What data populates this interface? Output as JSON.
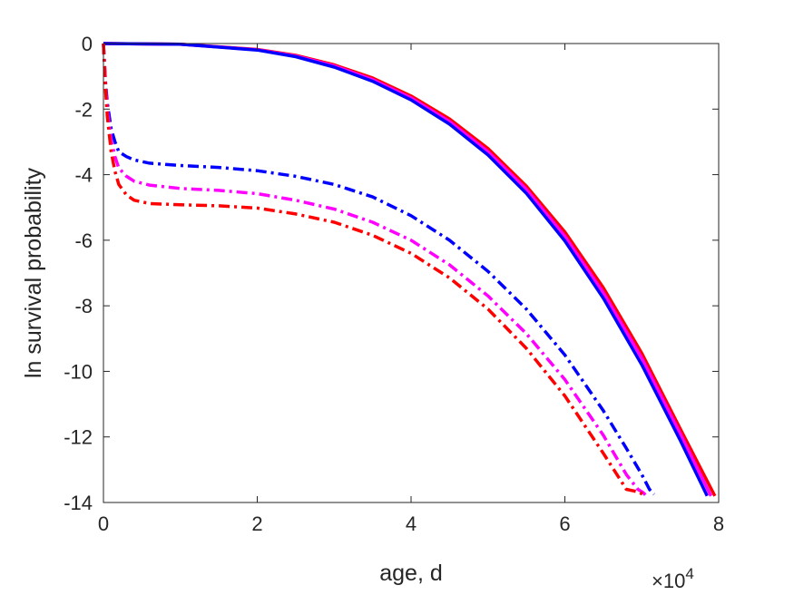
{
  "chart_data": {
    "type": "line",
    "xlabel": "age, d",
    "ylabel": "ln survival probability",
    "x_exponent_label": {
      "base": "×10",
      "power": "4"
    },
    "xlim": [
      0,
      80000
    ],
    "ylim": [
      -14,
      0
    ],
    "x_ticks": [
      0,
      20000,
      40000,
      60000,
      80000
    ],
    "x_tick_labels": [
      "0",
      "2",
      "4",
      "6",
      "8"
    ],
    "y_ticks": [
      0,
      -2,
      -4,
      -6,
      -8,
      -10,
      -12,
      -14
    ],
    "y_tick_labels": [
      "0",
      "-2",
      "-4",
      "-6",
      "-8",
      "-10",
      "-12",
      "-14"
    ],
    "grid": false,
    "box": true,
    "series": [
      {
        "color": "#ff0000",
        "style": "solid",
        "x": [
          0,
          10000,
          20000,
          25000,
          30000,
          35000,
          40000,
          45000,
          50000,
          55000,
          60000,
          65000,
          70000,
          75000,
          79500
        ],
        "y": [
          0,
          -0.02,
          -0.18,
          -0.36,
          -0.65,
          -1.05,
          -1.6,
          -2.3,
          -3.2,
          -4.35,
          -5.75,
          -7.45,
          -9.45,
          -11.75,
          -13.8
        ]
      },
      {
        "color": "#ff00ff",
        "style": "solid",
        "x": [
          0,
          10000,
          20000,
          25000,
          30000,
          35000,
          40000,
          45000,
          50000,
          55000,
          60000,
          65000,
          70000,
          75000,
          79000
        ],
        "y": [
          0,
          -0.02,
          -0.19,
          -0.38,
          -0.68,
          -1.1,
          -1.66,
          -2.38,
          -3.3,
          -4.45,
          -5.88,
          -7.6,
          -9.6,
          -11.9,
          -13.8
        ]
      },
      {
        "color": "#0000ff",
        "style": "solid",
        "x": [
          0,
          10000,
          20000,
          25000,
          30000,
          35000,
          40000,
          45000,
          50000,
          55000,
          60000,
          65000,
          70000,
          75000,
          78500
        ],
        "y": [
          0,
          -0.02,
          -0.2,
          -0.4,
          -0.72,
          -1.15,
          -1.72,
          -2.46,
          -3.4,
          -4.57,
          -6.02,
          -7.77,
          -9.8,
          -12.1,
          -13.8
        ]
      },
      {
        "color": "#0000ff",
        "style": "dashdot",
        "x": [
          0,
          250,
          500,
          1000,
          1500,
          2000,
          3000,
          4000,
          6000,
          10000,
          15000,
          20000,
          25000,
          30000,
          35000,
          40000,
          45000,
          50000,
          55000,
          60000,
          65000,
          68000,
          70000,
          71000,
          71600
        ],
        "y": [
          0,
          -1.1,
          -1.8,
          -2.6,
          -3.0,
          -3.3,
          -3.45,
          -3.55,
          -3.65,
          -3.72,
          -3.78,
          -3.88,
          -4.05,
          -4.3,
          -4.68,
          -5.25,
          -6.0,
          -6.95,
          -8.1,
          -9.5,
          -11.2,
          -12.35,
          -13.15,
          -13.6,
          -13.75
        ]
      },
      {
        "color": "#ff00ff",
        "style": "dashdot",
        "x": [
          0,
          250,
          500,
          1000,
          1500,
          2000,
          3000,
          4000,
          6000,
          10000,
          15000,
          20000,
          25000,
          30000,
          35000,
          40000,
          45000,
          50000,
          55000,
          60000,
          65000,
          68000,
          69500,
          70200,
          70600
        ],
        "y": [
          0,
          -1.2,
          -2.0,
          -2.95,
          -3.45,
          -3.8,
          -4.05,
          -4.2,
          -4.32,
          -4.42,
          -4.48,
          -4.58,
          -4.78,
          -5.05,
          -5.45,
          -6.0,
          -6.75,
          -7.7,
          -8.85,
          -10.25,
          -11.95,
          -13.15,
          -13.6,
          -13.7,
          -13.8
        ]
      },
      {
        "color": "#ff0000",
        "style": "dashdot",
        "x": [
          0,
          250,
          500,
          1000,
          1500,
          2000,
          3000,
          4000,
          6000,
          10000,
          15000,
          20000,
          25000,
          30000,
          35000,
          40000,
          45000,
          50000,
          55000,
          60000,
          65000,
          68000,
          69000,
          69800,
          70300
        ],
        "y": [
          0,
          -1.3,
          -2.2,
          -3.3,
          -3.9,
          -4.3,
          -4.62,
          -4.78,
          -4.88,
          -4.92,
          -4.95,
          -5.02,
          -5.2,
          -5.45,
          -5.85,
          -6.4,
          -7.15,
          -8.1,
          -9.3,
          -10.75,
          -12.5,
          -13.6,
          -13.65,
          -13.7,
          -13.8
        ]
      }
    ]
  }
}
